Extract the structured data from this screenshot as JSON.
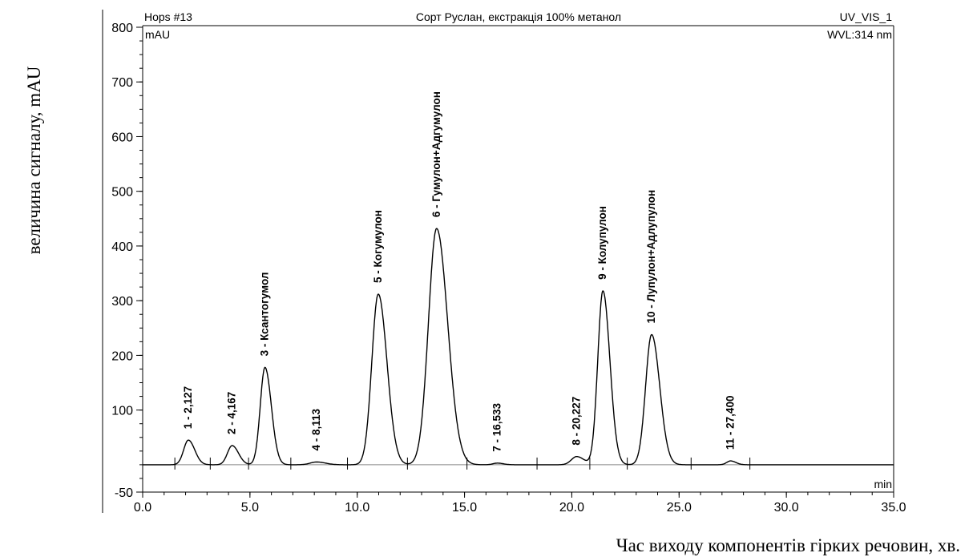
{
  "chart_data": {
    "type": "line",
    "header": {
      "left": "Hops #13",
      "center": "Сорт Руслан, екстракція 100% метанол",
      "right": "UV_VIS_1",
      "unit": "mAU",
      "wavelength": "WVL:314 nm",
      "x_unit": "min"
    },
    "ylabel": "величина сигналу, mAU",
    "xlabel": "Час виходу компонентів гірких речовин, хв.",
    "xlim": [
      0,
      35
    ],
    "ylim": [
      -50,
      800
    ],
    "x_ticks": [
      "0.0",
      "5.0",
      "10.0",
      "15.0",
      "20.0",
      "25.0",
      "30.0",
      "35.0"
    ],
    "y_ticks": [
      "-50",
      "100",
      "200",
      "300",
      "400",
      "500",
      "600",
      "700",
      "800"
    ],
    "baseline_level": 0,
    "peaks": [
      {
        "label": "1 - 2,127",
        "rt": 2.13,
        "height": 45,
        "sigma": 0.22
      },
      {
        "label": "2 - 4,167",
        "rt": 4.17,
        "height": 35,
        "sigma": 0.22
      },
      {
        "label": "3 - Ксантогумол",
        "rt": 5.7,
        "height": 178,
        "sigma": 0.22
      },
      {
        "label": "4 - 8,113",
        "rt": 8.11,
        "height": 5,
        "sigma": 0.3
      },
      {
        "label": "5 - Когумулон",
        "rt": 10.98,
        "height": 312,
        "sigma": 0.3
      },
      {
        "label": "6 - Гумулон+Адгумулон",
        "rt": 13.7,
        "height": 432,
        "sigma": 0.38
      },
      {
        "label": "7 - 16,533",
        "rt": 16.53,
        "height": 3,
        "sigma": 0.2
      },
      {
        "label": "8 - 20,227",
        "rt": 20.23,
        "height": 15,
        "sigma": 0.25
      },
      {
        "label": "9 - Колупулон",
        "rt": 21.45,
        "height": 318,
        "sigma": 0.24
      },
      {
        "label": "10 - Лупулон+Адлупулон",
        "rt": 23.72,
        "height": 238,
        "sigma": 0.28
      },
      {
        "label": "11 - 27,400",
        "rt": 27.4,
        "height": 7,
        "sigma": 0.18
      }
    ]
  }
}
